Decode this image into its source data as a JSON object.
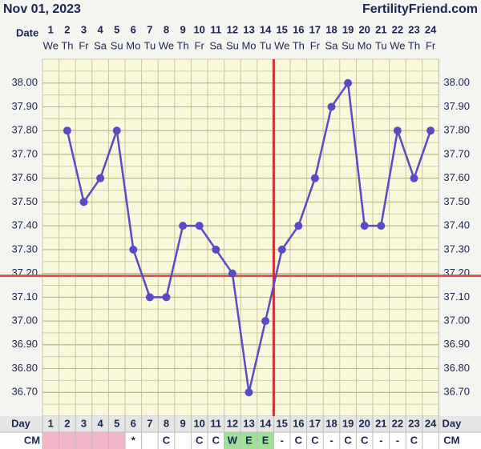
{
  "chart_data": {
    "type": "line",
    "title": "Nov 01, 2023",
    "source": "FertilityFriend.com",
    "date_label": "Date",
    "day_label": "Day",
    "cm_label": "CM",
    "categories": [
      "1",
      "2",
      "3",
      "4",
      "5",
      "6",
      "7",
      "8",
      "9",
      "10",
      "11",
      "12",
      "13",
      "14",
      "15",
      "16",
      "17",
      "18",
      "19",
      "20",
      "21",
      "22",
      "23",
      "24"
    ],
    "weekdays": [
      "We",
      "Th",
      "Fr",
      "Sa",
      "Su",
      "Mo",
      "Tu",
      "We",
      "Th",
      "Fr",
      "Sa",
      "Su",
      "Mo",
      "Tu",
      "We",
      "Th",
      "Fr",
      "Sa",
      "Su",
      "Mo",
      "Tu",
      "We",
      "Th",
      "Fr"
    ],
    "values": [
      null,
      37.8,
      37.5,
      37.6,
      37.8,
      37.3,
      37.1,
      37.1,
      37.4,
      37.4,
      37.3,
      37.2,
      36.7,
      37.0,
      37.3,
      37.4,
      37.6,
      37.9,
      38.0,
      37.4,
      37.4,
      37.8,
      37.6,
      37.8
    ],
    "color": "#5a4bc4",
    "coverline": 37.19,
    "coverline_color": "#d9534f",
    "ovulation_day": 14,
    "ovulation_color": "#cc3333",
    "cervical_mucus": [
      null,
      null,
      null,
      null,
      null,
      "*",
      null,
      "C",
      null,
      "C",
      "C",
      "W",
      "E",
      "E",
      "-",
      "C",
      "C",
      "-",
      "C",
      "C",
      "-",
      "-",
      "C",
      null
    ],
    "period_days": [
      1,
      2,
      3,
      4,
      5
    ],
    "period_color": "#f2b6c8",
    "fertile_days": [
      12,
      13,
      14
    ],
    "fertile_color": "#9fe09a",
    "ylim": [
      36.6,
      38.1
    ],
    "yticks": [
      {
        "value": 36.7,
        "label": "36.70"
      },
      {
        "value": 36.8,
        "label": "36.80"
      },
      {
        "value": 36.9,
        "label": "36.90"
      },
      {
        "value": 37.0,
        "label": "37.00"
      },
      {
        "value": 37.1,
        "label": "37.10"
      },
      {
        "value": 37.2,
        "label": "37.20"
      },
      {
        "value": 37.3,
        "label": "37.30"
      },
      {
        "value": 37.4,
        "label": "37.40"
      },
      {
        "value": 37.5,
        "label": "37.50"
      },
      {
        "value": 37.6,
        "label": "37.60"
      },
      {
        "value": 37.7,
        "label": "37.70"
      },
      {
        "value": 37.8,
        "label": "37.80"
      },
      {
        "value": 37.9,
        "label": "37.90"
      },
      {
        "value": 38.0,
        "label": "38.00"
      }
    ],
    "grid": true
  }
}
